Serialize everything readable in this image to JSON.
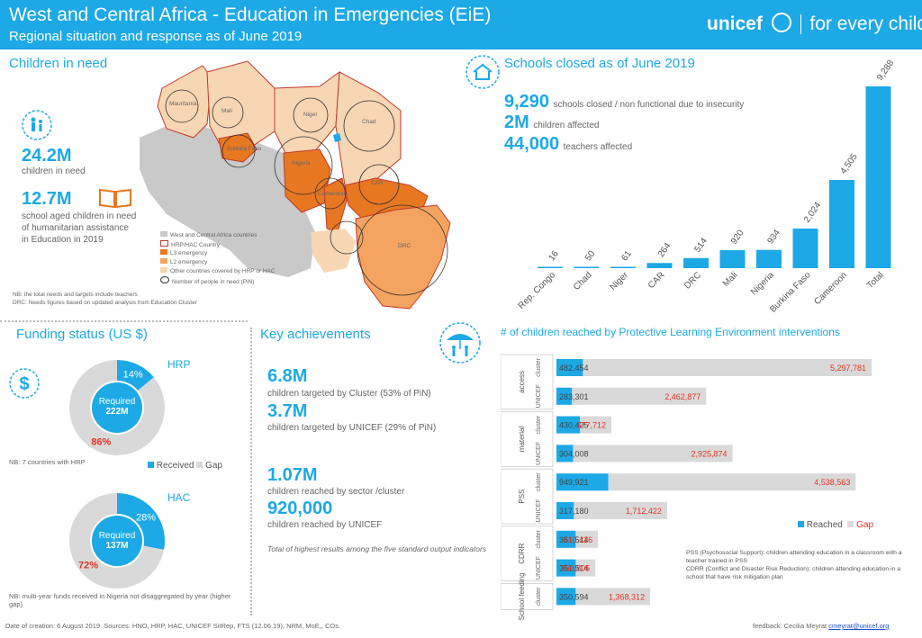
{
  "header": {
    "title": "West and Central Africa - Education in Emergencies (EiE)",
    "subtitle": "Regional situation and response as of June 2019",
    "logo_brand": "unicef",
    "logo_tagline": "for every child"
  },
  "children_in_need": {
    "heading": "Children in need",
    "stat1_value": "24.2M",
    "stat1_label": "children in need",
    "stat2_value": "12.7M",
    "stat2_label": "school aged children in need of humanitarian assistance in Education in 2019",
    "map_labels": [
      "Mauritania",
      "Mali",
      "Niger",
      "Chad",
      "Burkina Faso",
      "Nigeria",
      "Cameroon",
      "CAR",
      "DRC"
    ],
    "map_legend": [
      "West and Central Africa countries",
      "HRP/HAC Country",
      "L3 emergency",
      "L2 emergency",
      "Other countries covered by HRP or HAC",
      "Number of people in need (PiN)"
    ],
    "map_note": "NB: the total needs and targets include teachers\nDRC: Needs figures based on updated analysis from Education Cluster"
  },
  "schools_closed": {
    "heading": "Schools closed as of June 2019",
    "stat1_value": "9,290",
    "stat1_label": "schools closed / non functional  due to insecurity",
    "stat2_value": "2M",
    "stat2_label": "children affected",
    "stat3_value": "44,000",
    "stat3_label": "teachers affected"
  },
  "chart_data": [
    {
      "type": "bar",
      "title": "Schools closed as of June 2019",
      "categories": [
        "Rep. Congo",
        "Chad",
        "Niger",
        "CAR",
        "DRC",
        "Mali",
        "Nigeria",
        "Burkina Faso",
        "Cameroon",
        "Total"
      ],
      "values": [
        16,
        50,
        61,
        264,
        514,
        920,
        934,
        2024,
        4505,
        9288
      ],
      "value_labels": [
        "16",
        "50",
        "61",
        "264",
        "514",
        "920",
        "934",
        "2,024",
        "4,505",
        "9,288"
      ],
      "color": "#1ca9e6"
    },
    {
      "type": "bar",
      "orientation": "horizontal",
      "title": "# of children reached by Protective Learning Environment interventions",
      "groups": [
        "access",
        "material",
        "PSS",
        "CDRR",
        "School feeding"
      ],
      "categories": [
        "access cluster",
        "access UNICEF",
        "material cluster",
        "material UNICEF",
        "PSS cluster",
        "PSS UNICEF",
        "CDRR cluster",
        "CDRR UNICEF",
        "School feeding cluster"
      ],
      "series": [
        {
          "name": "Reached",
          "values": [
            482454,
            283301,
            430425,
            304008,
            949921,
            317180,
            351514,
            351514,
            350594
          ],
          "labels": [
            "482,454",
            "283,301",
            "430,425",
            "304,008",
            "949,921",
            "317,180",
            "351,514",
            "351,514",
            "350,594"
          ],
          "color": "#1ca9e6"
        },
        {
          "name": "Gap",
          "values": [
            5297781,
            2462877,
            577712,
            2925874,
            4538563,
            1712422,
            410426,
            360805,
            1368312
          ],
          "labels": [
            "5,297,781",
            "2,462,877",
            "577,712",
            "2,925,874",
            "4,538,563",
            "1,712,422",
            "410,426",
            "360,805",
            "1,368,312"
          ],
          "color": "#e63323"
        }
      ],
      "legend": "bottom-right"
    },
    {
      "type": "pie",
      "title": "HRP",
      "center_label": "Required",
      "center_value": "222M",
      "slices": [
        {
          "name": "Received",
          "value": 14,
          "label": "14%",
          "color": "#1ca9e6"
        },
        {
          "name": "Gap",
          "value": 86,
          "label": "86%",
          "color": "#d9d9d9"
        }
      ]
    },
    {
      "type": "pie",
      "title": "HAC",
      "center_label": "Required",
      "center_value": "137M",
      "slices": [
        {
          "name": "Received",
          "value": 28,
          "label": "28%",
          "color": "#1ca9e6"
        },
        {
          "name": "Gap",
          "value": 72,
          "label": "72%",
          "color": "#d9d9d9"
        }
      ]
    }
  ],
  "funding": {
    "heading": "Funding status (US $)",
    "hrp_note": "NB: 7 countries with HRP",
    "legend_received": "Received",
    "legend_gap": "Gap",
    "hac_note": "NB: multi-year funds received in Nigeria not disaggregated by year (higher gap)"
  },
  "achievements": {
    "heading": "Key achievements",
    "a1_value": "6.8M",
    "a1_label": "children targeted by Cluster (53% of PiN)",
    "a2_value": "3.7M",
    "a2_label": "children targeted by UNICEF (29% of PiN)",
    "a3_value": "1.07M",
    "a3_label": "children reached by sector /cluster",
    "a4_value": "920,000",
    "a4_label": "children reached by UNICEF",
    "note": "Total of highest results among the five standard output indicators"
  },
  "ple": {
    "heading": "# of children reached by Protective Learning Environment interventions",
    "legend_reached": "Reached",
    "legend_gap": "Gap",
    "row_types": [
      "cluster",
      "UNICEF",
      "cluster",
      "UNICEF",
      "cluster",
      "UNICEF",
      "cluster",
      "UNICEF",
      "cluster"
    ],
    "note": "PSS (Psychosocial Support): children attending education in a classroom with a teacher trained in PSS\nCDRR (Conflict and Disaster Risk Reduction): children attending education in a school that have risk mitigation plan"
  },
  "footer": {
    "sources": "Date of creation: 6 August 2019. Sources: HNO, HRP, HAC, UNICEF SitRep, FTS (12.06.19), NRM, MoE,, COs.",
    "feedback": "feedback: Cecilia Meyrat",
    "email": "cmeyrat@unicef.org"
  }
}
